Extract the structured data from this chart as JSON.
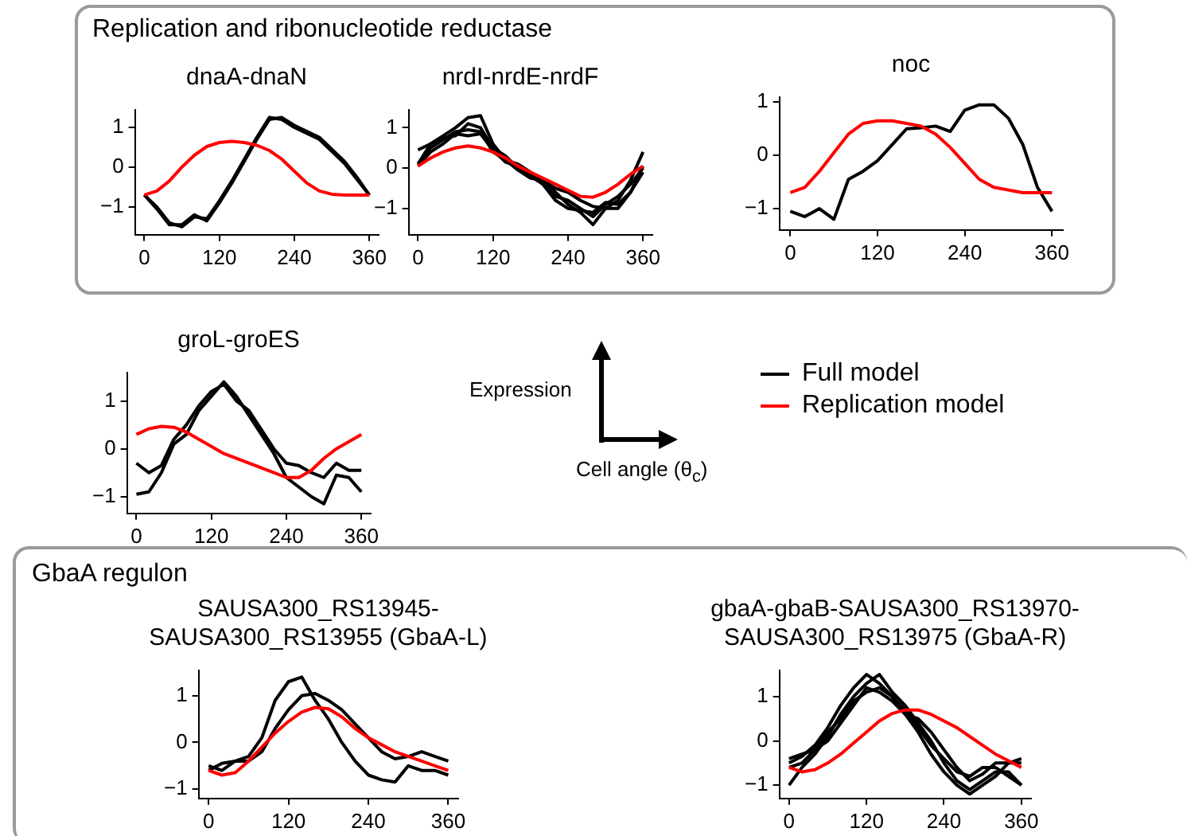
{
  "chart_data": [
    {
      "type": "line",
      "title": "dnaA-dnaN",
      "annotations": [
        "Replication and ribonucleotide reductase"
      ],
      "x": [
        0,
        20,
        40,
        60,
        80,
        100,
        120,
        140,
        160,
        180,
        200,
        220,
        240,
        260,
        280,
        300,
        320,
        340,
        360
      ],
      "xlim": [
        -15,
        375
      ],
      "xticks": [
        0,
        120,
        240,
        360
      ],
      "ylim": [
        -1.7,
        1.45
      ],
      "yticks": [
        -1,
        0,
        1
      ],
      "grid": false,
      "marker": "none",
      "line_style": "solid",
      "series": [
        {
          "color": "#000000",
          "values": [
            -0.7,
            -1.05,
            -1.45,
            -1.45,
            -1.2,
            -1.35,
            -0.9,
            -0.4,
            0.15,
            0.7,
            1.2,
            1.25,
            1.05,
            0.9,
            0.75,
            0.45,
            0.15,
            -0.25,
            -0.7
          ]
        },
        {
          "color": "#000000",
          "values": [
            -0.7,
            -1.0,
            -1.4,
            -1.5,
            -1.25,
            -1.3,
            -0.85,
            -0.35,
            0.2,
            0.75,
            1.25,
            1.2,
            1.0,
            0.85,
            0.7,
            0.4,
            0.1,
            -0.3,
            -0.7
          ]
        },
        {
          "color": "#ff0000",
          "values": [
            -0.7,
            -0.6,
            -0.35,
            0.0,
            0.3,
            0.52,
            0.62,
            0.65,
            0.62,
            0.55,
            0.42,
            0.2,
            -0.1,
            -0.4,
            -0.6,
            -0.68,
            -0.7,
            -0.7,
            -0.7
          ]
        }
      ]
    },
    {
      "type": "line",
      "title": "nrdI-nrdE-nrdF",
      "x": [
        0,
        20,
        40,
        60,
        80,
        100,
        120,
        140,
        160,
        180,
        200,
        220,
        240,
        260,
        280,
        300,
        320,
        340,
        360
      ],
      "xlim": [
        -15,
        375
      ],
      "xticks": [
        0,
        120,
        240,
        360
      ],
      "ylim": [
        -1.65,
        1.45
      ],
      "yticks": [
        -1,
        0,
        1
      ],
      "grid": false,
      "marker": "none",
      "line_style": "solid",
      "series": [
        {
          "color": "#000000",
          "values": [
            0.45,
            0.6,
            0.8,
            1.0,
            1.25,
            1.3,
            0.6,
            0.2,
            0.1,
            -0.1,
            -0.3,
            -0.6,
            -0.9,
            -1.1,
            -1.4,
            -1.0,
            -0.8,
            -0.3,
            0.4
          ]
        },
        {
          "color": "#000000",
          "values": [
            0.1,
            0.6,
            0.75,
            0.8,
            1.1,
            1.0,
            0.5,
            0.3,
            0.0,
            -0.2,
            -0.4,
            -0.7,
            -0.8,
            -1.0,
            -1.2,
            -0.9,
            -0.7,
            -0.4,
            0.0
          ]
        },
        {
          "color": "#000000",
          "values": [
            0.1,
            0.5,
            0.7,
            0.9,
            0.95,
            0.9,
            0.4,
            0.2,
            -0.05,
            -0.25,
            -0.3,
            -0.5,
            -0.6,
            -0.8,
            -0.95,
            -1.0,
            -1.0,
            -0.6,
            -0.1
          ]
        },
        {
          "color": "#000000",
          "values": [
            0.05,
            0.4,
            0.6,
            0.85,
            0.8,
            0.85,
            0.45,
            0.15,
            0.05,
            -0.15,
            -0.4,
            -0.8,
            -1.0,
            -1.05,
            -1.1,
            -0.85,
            -0.9,
            -0.6,
            0.05
          ]
        },
        {
          "color": "#ff0000",
          "values": [
            0.05,
            0.25,
            0.4,
            0.5,
            0.55,
            0.5,
            0.4,
            0.25,
            0.05,
            -0.1,
            -0.25,
            -0.4,
            -0.55,
            -0.7,
            -0.72,
            -0.6,
            -0.4,
            -0.15,
            0.05
          ]
        }
      ]
    },
    {
      "type": "line",
      "title": "noc",
      "x": [
        0,
        20,
        40,
        60,
        80,
        100,
        120,
        140,
        160,
        180,
        200,
        220,
        240,
        260,
        280,
        300,
        320,
        340,
        360
      ],
      "xlim": [
        -15,
        375
      ],
      "xticks": [
        0,
        120,
        240,
        360
      ],
      "ylim": [
        -1.4,
        1.1
      ],
      "yticks": [
        -1,
        0,
        1
      ],
      "grid": false,
      "marker": "none",
      "line_style": "solid",
      "series": [
        {
          "color": "#000000",
          "values": [
            -1.05,
            -1.15,
            -1.0,
            -1.2,
            -0.45,
            -0.3,
            -0.1,
            0.2,
            0.5,
            0.52,
            0.55,
            0.45,
            0.85,
            0.95,
            0.95,
            0.7,
            0.2,
            -0.6,
            -1.05
          ]
        },
        {
          "color": "#ff0000",
          "values": [
            -0.7,
            -0.6,
            -0.3,
            0.05,
            0.4,
            0.6,
            0.65,
            0.65,
            0.6,
            0.55,
            0.4,
            0.15,
            -0.15,
            -0.45,
            -0.6,
            -0.65,
            -0.7,
            -0.7,
            -0.7
          ]
        }
      ]
    },
    {
      "type": "line",
      "title": "groL-groES",
      "legend": "right",
      "x": [
        0,
        20,
        40,
        60,
        80,
        100,
        120,
        140,
        160,
        180,
        200,
        220,
        240,
        260,
        280,
        300,
        320,
        340,
        360
      ],
      "xlim": [
        -15,
        375
      ],
      "xticks": [
        0,
        120,
        240,
        360
      ],
      "ylim": [
        -1.35,
        1.6
      ],
      "yticks": [
        -1,
        0,
        1
      ],
      "grid": false,
      "marker": "none",
      "line_style": "solid",
      "series": [
        {
          "name": "Full model",
          "color": "#000000",
          "values": [
            -0.3,
            -0.5,
            -0.35,
            0.2,
            0.5,
            0.9,
            1.2,
            1.35,
            1.0,
            0.8,
            0.4,
            0.0,
            -0.3,
            -0.35,
            -0.5,
            -0.6,
            -0.3,
            -0.45,
            -0.45
          ]
        },
        {
          "color": "#000000",
          "values": [
            -0.95,
            -0.9,
            -0.5,
            0.1,
            0.3,
            0.8,
            1.1,
            1.4,
            1.1,
            0.7,
            0.3,
            -0.1,
            -0.6,
            -0.8,
            -1.0,
            -1.15,
            -0.55,
            -0.6,
            -0.9
          ]
        },
        {
          "name": "Replication model",
          "color": "#ff0000",
          "values": [
            0.3,
            0.42,
            0.47,
            0.45,
            0.35,
            0.2,
            0.05,
            -0.1,
            -0.2,
            -0.3,
            -0.4,
            -0.5,
            -0.6,
            -0.6,
            -0.45,
            -0.2,
            0.0,
            0.15,
            0.3
          ]
        }
      ]
    },
    {
      "type": "other",
      "annotations": [
        "Expression",
        "Cell angle (θ$_{c}$)"
      ]
    },
    {
      "type": "line",
      "title": "SAUSA300_RS13945-SAUSA300_RS13955 (GbaA-L)",
      "annotations": [
        "GbaA regulon"
      ],
      "x": [
        0,
        20,
        40,
        60,
        80,
        100,
        120,
        140,
        160,
        180,
        200,
        220,
        240,
        260,
        280,
        300,
        320,
        340,
        360
      ],
      "xlim": [
        -15,
        375
      ],
      "xticks": [
        0,
        120,
        240,
        360
      ],
      "ylim": [
        -1.2,
        1.55
      ],
      "yticks": [
        -1,
        0,
        1
      ],
      "grid": false,
      "marker": "none",
      "line_style": "solid",
      "series": [
        {
          "color": "#000000",
          "values": [
            -0.5,
            -0.6,
            -0.4,
            -0.3,
            0.1,
            0.9,
            1.3,
            1.4,
            0.9,
            0.5,
            0.0,
            -0.4,
            -0.7,
            -0.8,
            -0.85,
            -0.5,
            -0.6,
            -0.6,
            -0.7
          ]
        },
        {
          "color": "#000000",
          "values": [
            -0.6,
            -0.45,
            -0.4,
            -0.4,
            -0.2,
            0.3,
            0.7,
            1.0,
            1.05,
            0.9,
            0.7,
            0.4,
            0.1,
            -0.2,
            -0.35,
            -0.3,
            -0.2,
            -0.3,
            -0.4
          ]
        },
        {
          "color": "#ff0000",
          "values": [
            -0.6,
            -0.7,
            -0.65,
            -0.4,
            -0.1,
            0.2,
            0.45,
            0.65,
            0.75,
            0.72,
            0.55,
            0.3,
            0.1,
            -0.05,
            -0.2,
            -0.3,
            -0.4,
            -0.5,
            -0.6
          ]
        }
      ]
    },
    {
      "type": "line",
      "title": "gbaA-gbaB-SAUSA300_RS13970-SAUSA300_RS13975 (GbaA-R)",
      "x": [
        0,
        20,
        40,
        60,
        80,
        100,
        120,
        140,
        160,
        180,
        200,
        220,
        240,
        260,
        280,
        300,
        320,
        340,
        360
      ],
      "xlim": [
        -15,
        375
      ],
      "xticks": [
        0,
        120,
        240,
        360
      ],
      "ylim": [
        -1.3,
        1.6
      ],
      "yticks": [
        -1,
        0,
        1
      ],
      "grid": false,
      "marker": "none",
      "line_style": "solid",
      "series": [
        {
          "color": "#000000",
          "values": [
            -0.5,
            -0.35,
            -0.1,
            0.3,
            0.8,
            1.2,
            1.5,
            1.3,
            1.0,
            0.6,
            0.2,
            -0.3,
            -0.7,
            -1.0,
            -1.2,
            -1.0,
            -0.8,
            -0.5,
            -0.4
          ]
        },
        {
          "color": "#000000",
          "values": [
            -1.0,
            -0.6,
            -0.3,
            0.1,
            0.6,
            1.0,
            1.3,
            1.5,
            1.1,
            0.8,
            0.4,
            0.0,
            -0.5,
            -0.9,
            -1.1,
            -0.9,
            -0.7,
            -0.7,
            -1.0
          ]
        },
        {
          "color": "#000000",
          "values": [
            -0.6,
            -0.5,
            -0.2,
            0.2,
            0.5,
            0.9,
            1.1,
            1.2,
            1.0,
            0.7,
            0.3,
            -0.1,
            -0.4,
            -0.7,
            -0.8,
            -0.6,
            -0.6,
            -0.8,
            -1.0
          ]
        },
        {
          "color": "#000000",
          "values": [
            -0.4,
            -0.3,
            -0.2,
            0.0,
            0.4,
            0.8,
            1.2,
            1.1,
            0.9,
            0.6,
            0.5,
            0.2,
            -0.2,
            -0.6,
            -0.9,
            -0.75,
            -0.5,
            -0.5,
            -0.5
          ]
        },
        {
          "color": "#ff0000",
          "values": [
            -0.6,
            -0.7,
            -0.65,
            -0.5,
            -0.3,
            -0.05,
            0.2,
            0.45,
            0.62,
            0.7,
            0.7,
            0.6,
            0.45,
            0.3,
            0.1,
            -0.1,
            -0.3,
            -0.45,
            -0.6
          ]
        }
      ]
    }
  ]
}
